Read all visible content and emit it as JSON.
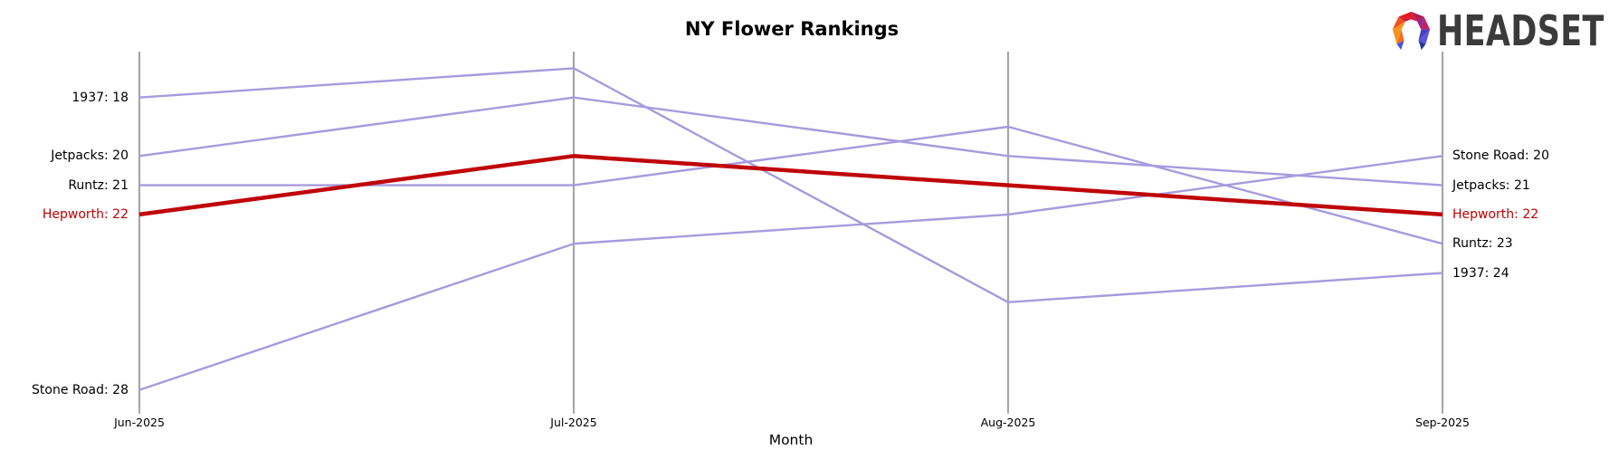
{
  "logo": {
    "text": "HEADSET",
    "icon": "headset-faceted-horseshoe"
  },
  "chart_data": {
    "type": "line",
    "variant": "bump-ranking-parallel-axes",
    "title": "NY Flower Rankings",
    "xlabel": "Month",
    "x": [
      "Jun-2025",
      "Jul-2025",
      "Aug-2025",
      "Sep-2025"
    ],
    "y_axis": {
      "inverted": true,
      "visible_value_range": [
        16.4,
        28.6
      ],
      "gridlines": "vertical-month-axes-only"
    },
    "legend": "endpoint-labels",
    "series": [
      {
        "name": "1937",
        "values": [
          18,
          17,
          25,
          24
        ],
        "color": "#a79ade",
        "highlight": false,
        "left_label": "1937: 18",
        "right_label": "1937: 24"
      },
      {
        "name": "Jetpacks",
        "values": [
          20,
          18,
          20,
          21
        ],
        "color": "#a79ade",
        "highlight": false,
        "left_label": "Jetpacks: 20",
        "right_label": "Jetpacks: 21"
      },
      {
        "name": "Runtz",
        "values": [
          21,
          21,
          19,
          23
        ],
        "color": "#a79ade",
        "highlight": false,
        "left_label": "Runtz: 21",
        "right_label": "Runtz: 23"
      },
      {
        "name": "Hepworth",
        "values": [
          22,
          20,
          21,
          22
        ],
        "color": "#bf0508",
        "highlight": true,
        "left_label": "Hepworth: 22",
        "right_label": "Hepworth: 22"
      },
      {
        "name": "Stone Road",
        "values": [
          28,
          23,
          22,
          20
        ],
        "color": "#a79ade",
        "highlight": false,
        "left_label": "Stone Road: 28",
        "right_label": "Stone Road: 20"
      }
    ]
  },
  "colors": {
    "axis": "#a6a6a6",
    "tick": "#8a8a8a",
    "text": "#000000",
    "highlight_text": "#c00000",
    "line_default": "#a79ade",
    "line_highlight": "#bf0508",
    "logo_text": "#3b3b3b",
    "background": "#ffffff"
  }
}
